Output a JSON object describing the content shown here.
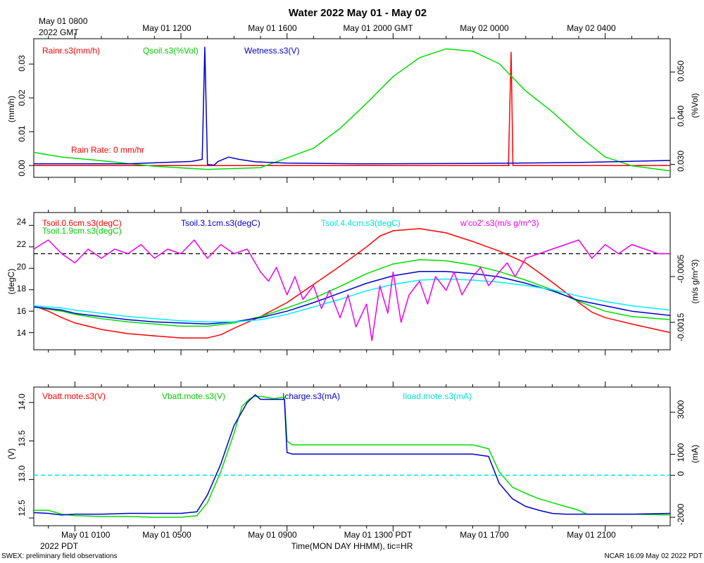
{
  "title": "Water 2022 May 01 - May 02",
  "top_axis": {
    "start_label_1": "May 01 0800",
    "start_label_2": "2022 GMT",
    "ticks": [
      "May 01 1200",
      "May 01 1600",
      "May 01 2000 GMT",
      "May 02 0000",
      "May 02 0400"
    ]
  },
  "bottom_axis": {
    "ticks": [
      "May 01 0100",
      "May 01 0500",
      "May 01 0900",
      "May 01 1300 PDT",
      "May 01 1700",
      "May 01 2100"
    ],
    "start_label": "2022 PDT",
    "xlabel": "Time(MON DAY HHMM), tic=HR"
  },
  "footer": {
    "left": "SWEX: preliminary field observations",
    "right": "NCAR 16:09 May 02 2022 PDT"
  },
  "colors": {
    "red": "#ff0000",
    "green": "#00dd00",
    "blue": "#0000cc",
    "cyan": "#00eeff",
    "magenta": "#ee00ee",
    "black": "#000000"
  },
  "chart_data": [
    {
      "type": "line",
      "x_unit": "hours since May 01 0000 PDT",
      "xlim": [
        -0.55,
        23.45
      ],
      "left_axis": {
        "ylabel": "(mm/h)",
        "ticks": [
          "0.00",
          "0.01",
          "0.02",
          "0.03"
        ],
        "ylim": [
          -0.0035,
          0.0375
        ]
      },
      "right_axis": {
        "ylabel": "(%Vol)",
        "ticks": [
          "0.030",
          "0.040",
          "0.050"
        ],
        "ylim": [
          0.0272,
          0.0572
        ]
      },
      "legend": [
        "Rainr.s3(mm/h)",
        "Qsoil.s3(%Vol)",
        "Wetness.s3(V)"
      ],
      "annotation": "Rain Rate: 0 mm/hr",
      "reference_line": {
        "value": 0,
        "style": "dashed"
      },
      "series": [
        {
          "name": "Rainr.s3(mm/h)",
          "color": "red",
          "axis": "left",
          "x": [
            -0.55,
            17.35,
            17.45,
            17.52,
            23.45
          ],
          "y": [
            0,
            0,
            0.0335,
            0,
            0
          ]
        },
        {
          "name": "Qsoil.s3(%Vol)",
          "color": "green",
          "axis": "right",
          "x": [
            -0.55,
            0.5,
            2,
            4,
            6,
            8,
            10,
            11,
            12,
            13,
            14,
            15,
            16,
            17,
            18,
            19,
            20,
            21,
            22,
            23.45
          ],
          "y": [
            0.0326,
            0.0316,
            0.0308,
            0.0296,
            0.0289,
            0.0293,
            0.0335,
            0.0378,
            0.0432,
            0.049,
            0.0531,
            0.055,
            0.0545,
            0.0518,
            0.0459,
            0.0414,
            0.0362,
            0.0316,
            0.0297,
            0.0286
          ]
        },
        {
          "name": "Wetness.s3(V)",
          "color": "blue",
          "axis": "left",
          "x": [
            -0.55,
            3,
            5.4,
            5.8,
            5.9,
            6.0,
            6.25,
            6.4,
            6.8,
            7.2,
            7.8,
            9,
            12,
            16,
            20,
            23.45
          ],
          "y": [
            0.0005,
            0.0005,
            0.0012,
            0.0018,
            0.035,
            0.0003,
            0.0001,
            0.0012,
            0.0025,
            0.0018,
            0.0011,
            0.0007,
            0.0005,
            0.0006,
            0.0009,
            0.0015
          ]
        }
      ]
    },
    {
      "type": "line",
      "x_unit": "hours since May 01 0000 PDT",
      "xlim": [
        -0.55,
        23.45
      ],
      "left_axis": {
        "ylabel": "(degC)",
        "ticks": [
          "14",
          "16",
          "18",
          "20",
          "22",
          "24"
        ],
        "ylim": [
          12.4,
          25.2
        ]
      },
      "right_axis": {
        "ylabel": "(m/s g/m^3)",
        "ticks": [
          "-0.0015",
          "-0.0005"
        ],
        "ylim": [
          -0.0021,
          0.0009
        ]
      },
      "legend": [
        "Tsoil.0.6cm.s3(degC)",
        "Tsoil.1.9cm.s3(degC)",
        "Tsoil.3.1cm.s3(degC)",
        "Tsoil.4.4cm.s3(degC)",
        "w'co2'.s3(m/s g/m^3)"
      ],
      "reference_line": {
        "value": 0,
        "axis": "right",
        "style": "dashed"
      },
      "series": [
        {
          "name": "Tsoil.0.6cm.s3(degC)",
          "color": "red",
          "axis": "left",
          "x": [
            -0.55,
            0,
            0.5,
            1,
            2,
            3,
            4,
            5,
            6,
            6.5,
            7,
            8,
            9,
            10,
            11,
            12,
            12.5,
            13,
            14,
            15,
            16,
            17,
            18,
            19,
            20,
            20.5,
            21,
            22,
            23.45
          ],
          "y": [
            16.5,
            16.0,
            15.4,
            14.9,
            14.3,
            13.9,
            13.7,
            13.5,
            13.5,
            13.8,
            14.4,
            15.5,
            16.8,
            18.5,
            20.2,
            22.0,
            23.0,
            23.5,
            23.7,
            23.3,
            22.5,
            21.6,
            20.5,
            18.7,
            16.8,
            15.9,
            15.4,
            14.8,
            14.0
          ]
        },
        {
          "name": "Tsoil.1.9cm.s3(degC)",
          "color": "green",
          "axis": "left",
          "x": [
            -0.55,
            0.5,
            1,
            2,
            3,
            4,
            5,
            6,
            7,
            8,
            9,
            10,
            11,
            12,
            13,
            14,
            15,
            16,
            17,
            18,
            19,
            20,
            21,
            22,
            23.45
          ],
          "y": [
            16.4,
            16.0,
            15.7,
            15.3,
            15.0,
            14.8,
            14.6,
            14.6,
            14.9,
            15.5,
            16.3,
            17.2,
            18.3,
            19.5,
            20.4,
            20.8,
            20.7,
            20.3,
            19.7,
            18.9,
            18.0,
            16.9,
            16.0,
            15.5,
            15.2
          ]
        },
        {
          "name": "Tsoil.3.1cm.s3(degC)",
          "color": "blue",
          "axis": "left",
          "x": [
            -0.55,
            0.5,
            1,
            2,
            3,
            4,
            5,
            6,
            7,
            8,
            9,
            10,
            11,
            12,
            13,
            14,
            15,
            16,
            17,
            18,
            19,
            20,
            21,
            22,
            23.45
          ],
          "y": [
            16.4,
            16.1,
            15.8,
            15.5,
            15.2,
            15.0,
            14.9,
            14.8,
            15.0,
            15.4,
            16.0,
            16.8,
            17.7,
            18.6,
            19.3,
            19.7,
            19.7,
            19.5,
            19.2,
            18.6,
            17.9,
            17.0,
            16.5,
            16.0,
            15.6
          ]
        },
        {
          "name": "Tsoil.4.4cm.s3(degC)",
          "color": "cyan",
          "axis": "left",
          "x": [
            -0.55,
            0.5,
            1,
            2,
            3,
            4,
            5,
            6,
            7,
            8,
            9,
            10,
            11,
            12,
            13,
            14,
            15,
            16,
            17,
            18,
            19,
            20,
            21,
            22,
            23.45
          ],
          "y": [
            16.5,
            16.3,
            16.1,
            15.8,
            15.5,
            15.3,
            15.1,
            15.0,
            15.0,
            15.2,
            15.7,
            16.4,
            17.1,
            17.9,
            18.5,
            18.9,
            19.0,
            18.9,
            18.7,
            18.4,
            18.0,
            17.4,
            16.9,
            16.5,
            16.1
          ]
        },
        {
          "name": "w'co2'.s3(m/s g/m^3)",
          "color": "magenta",
          "axis": "right",
          "x": [
            -0.55,
            0,
            0.5,
            1,
            1.5,
            2,
            2.5,
            3,
            3.5,
            4,
            4.5,
            5,
            5.5,
            6,
            6.5,
            7,
            7.5,
            8,
            8.3,
            8.6,
            9,
            9.3,
            9.6,
            10,
            10.3,
            10.6,
            11,
            11.3,
            11.6,
            12,
            12.2,
            12.5,
            12.8,
            13,
            13.3,
            13.6,
            14,
            14.3,
            14.6,
            15,
            15.3,
            15.6,
            16,
            16.3,
            16.6,
            17,
            17.3,
            17.6,
            18,
            18.5,
            19,
            19.5,
            20,
            20.5,
            21,
            21.5,
            22,
            22.5,
            23,
            23.45
          ],
          "y": [
            0.0001,
            0.0003,
            0.0,
            -0.0002,
            0.0001,
            -0.0001,
            0.0001,
            0.0,
            0.0002,
            -0.0001,
            0.0001,
            0.0,
            0.0003,
            -0.0001,
            0.0002,
            0.0,
            0.0001,
            -0.0004,
            -0.0006,
            -0.0003,
            -0.0009,
            -0.0005,
            -0.001,
            -0.0007,
            -0.0012,
            -0.0008,
            -0.0014,
            -0.0009,
            -0.0016,
            -0.0011,
            -0.0019,
            -0.0007,
            -0.0013,
            -0.0004,
            -0.0015,
            -0.0009,
            -0.0006,
            -0.0011,
            -0.0005,
            -0.0008,
            -0.0004,
            -0.0009,
            -0.0005,
            -0.0003,
            -0.0007,
            -0.0004,
            -0.0002,
            -0.0005,
            -0.0001,
            0.0,
            0.0001,
            0.0002,
            0.0003,
            -0.0001,
            0.0002,
            0.0,
            0.0002,
            0.0001,
            0.0,
            0.0
          ]
        }
      ]
    },
    {
      "type": "line",
      "x_unit": "hours since May 01 0000 PDT",
      "xlim": [
        -0.55,
        23.45
      ],
      "left_axis": {
        "ylabel": "(V)",
        "ticks": [
          "12.5",
          "13.0",
          "13.5",
          "14.0"
        ],
        "ylim": [
          12.4,
          14.2
        ]
      },
      "right_axis": {
        "ylabel": "(mA)",
        "ticks": [
          "-2000",
          "0",
          "1000",
          "3000"
        ],
        "ylim": [
          -2400,
          4200
        ]
      },
      "legend": [
        "Vbatt.mote.s3(V)",
        "Vbatt.mote.s3(V)",
        "Icharge.s3(mA)",
        "Iload.mote.s3(mA)"
      ],
      "reference_line": {
        "value": 0,
        "axis": "right",
        "style": "dashed"
      },
      "series": [
        {
          "name": "Vbatt.mote.s3(V)",
          "color": "green",
          "axis": "left",
          "x": [
            -0.55,
            0,
            0.5,
            1,
            2,
            3,
            4,
            5,
            5.6,
            6,
            6.5,
            7,
            7.3,
            7.6,
            7.8,
            8,
            8.5,
            8.9,
            9.0,
            9.2,
            10,
            12,
            14,
            16,
            16.6,
            17,
            17.5,
            18,
            18.5,
            19,
            19.5,
            20,
            20.3,
            21,
            22,
            23.45
          ],
          "y": [
            12.6,
            12.6,
            12.55,
            12.53,
            12.52,
            12.52,
            12.51,
            12.51,
            12.53,
            12.7,
            13.1,
            13.6,
            13.95,
            14.05,
            14.08,
            14.08,
            14.05,
            14.07,
            13.5,
            13.45,
            13.45,
            13.45,
            13.45,
            13.45,
            13.4,
            13.1,
            12.9,
            12.82,
            12.75,
            12.7,
            12.65,
            12.6,
            12.55,
            12.55,
            12.55,
            12.54
          ]
        },
        {
          "name": "Icharge.s3(mA)",
          "color": "blue",
          "axis": "left",
          "x": [
            -0.55,
            0,
            0.5,
            1,
            2,
            3,
            4,
            5,
            5.6,
            6,
            6.5,
            7,
            7.5,
            7.8,
            8,
            8.9,
            9.0,
            9.2,
            10,
            12,
            14,
            16,
            16.6,
            17,
            17.5,
            18,
            18.5,
            19,
            19.5,
            20,
            20.3,
            21,
            22,
            23.45
          ],
          "y": [
            12.57,
            12.56,
            12.54,
            12.55,
            12.55,
            12.56,
            12.56,
            12.56,
            12.58,
            12.8,
            13.2,
            13.7,
            14.0,
            14.1,
            14.04,
            14.04,
            13.35,
            13.33,
            13.33,
            13.33,
            13.33,
            13.33,
            13.3,
            12.95,
            12.75,
            12.65,
            12.6,
            12.56,
            12.55,
            12.55,
            12.55,
            12.55,
            12.55,
            12.56
          ]
        },
        {
          "name": "Iload.mote.s3(mA)",
          "color": "cyan",
          "axis": "right",
          "x": [
            -0.55,
            23.45
          ],
          "y": [
            0,
            0
          ]
        }
      ]
    }
  ]
}
